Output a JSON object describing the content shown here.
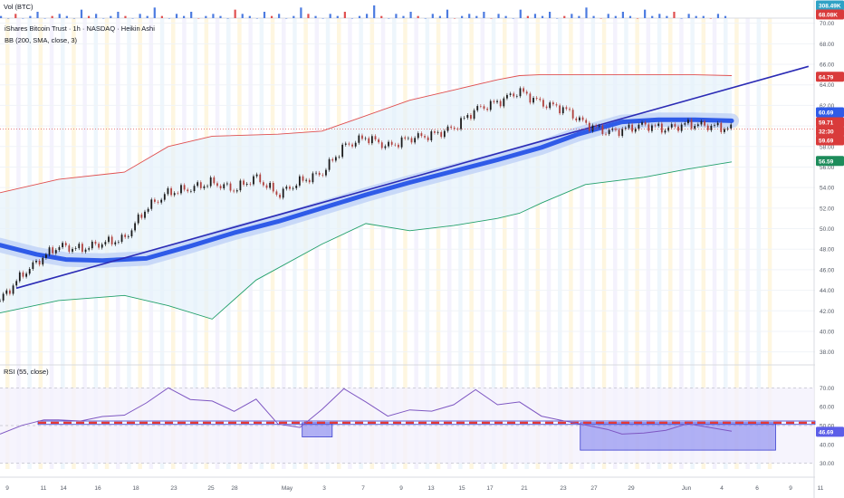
{
  "header": {
    "title": "iShares Bitcoin Trust · 1h · NASDAQ · Heikin Ashi",
    "bb_label": "BB (200, SMA, close, 3)",
    "vol_label": "Vol (BTC)",
    "rsi_label": "RSI (55, close)"
  },
  "colors": {
    "price_line": "#1a1a1a",
    "candle_up": "#1a1a1a",
    "candle_down": "#b0413e",
    "bb_upper": "#e05050",
    "bb_lower": "#22a06b",
    "bb_fill": "#e6f2fb",
    "basis": "#2f5be8",
    "trendline": "#2b2bb5",
    "rsi_line": "#7e57c2",
    "rsi_box": "#5c5ee8",
    "rsi_dash": "#e53935",
    "vol_up": "#4c7be0",
    "vol_down": "#e05050",
    "badge_green": "#1e8c5b",
    "badge_red": "#d93b3b",
    "badge_blue": "#2f5be8",
    "vol_badge_blue": "#2fa2c6"
  },
  "price_axis_labels": [
    "70.00",
    "68.00",
    "66.00",
    "64.00",
    "62.00",
    "60.00",
    "58.00",
    "56.00",
    "54.00",
    "52.00",
    "50.00",
    "48.00",
    "46.00",
    "44.00",
    "42.00",
    "40.00",
    "38.00"
  ],
  "rsi_axis_labels": [
    "70.00",
    "60.00",
    "50.00",
    "40.00",
    "30.00"
  ],
  "badges": {
    "vol1": "308.49K",
    "vol2": "68.08K",
    "bb_upper": "64.79",
    "basis": "60.69",
    "price": "59.71",
    "countdown": "32:30",
    "price2": "59.69",
    "bb_lower": "56.59",
    "rsi": "46.69"
  },
  "x_axis_labels": [
    "9",
    "11",
    "14",
    "16",
    "18",
    "23",
    "25",
    "28",
    "May",
    "3",
    "7",
    "9",
    "13",
    "15",
    "17",
    "21",
    "23",
    "27",
    "29",
    "Jun",
    "4",
    "6",
    "9",
    "11"
  ],
  "chart_data": {
    "type": "line",
    "price_ylim": [
      37,
      70.5
    ],
    "rsi_ylim": [
      27,
      73
    ],
    "price_series": {
      "name": "Price",
      "x": [
        0,
        3,
        6,
        8,
        11,
        14,
        17,
        20,
        23,
        26,
        29,
        32,
        35,
        38,
        41,
        44,
        47,
        50,
        53,
        56,
        59,
        62,
        65,
        68,
        71,
        74,
        77,
        80,
        83,
        85,
        88,
        91,
        94,
        97,
        100
      ],
      "values": [
        43.0,
        45.5,
        47.3,
        48.3,
        48.0,
        48.6,
        49.0,
        52.0,
        53.5,
        53.9,
        54.5,
        53.8,
        55.0,
        53.3,
        54.6,
        55.4,
        58.0,
        58.9,
        58.0,
        58.8,
        59.1,
        59.8,
        61.6,
        62.3,
        63.4,
        62.2,
        61.7,
        60.2,
        59.4,
        59.6,
        60.1,
        59.7,
        60.2,
        60.0,
        59.7
      ]
    },
    "bb_upper": {
      "name": "BB upper",
      "x": [
        0,
        8,
        17,
        23,
        29,
        38,
        44,
        50,
        56,
        62,
        68,
        71,
        74,
        80,
        88,
        94,
        100
      ],
      "values": [
        53.5,
        54.8,
        55.5,
        58.0,
        59.0,
        59.2,
        59.5,
        61.0,
        62.5,
        63.5,
        64.5,
        64.9,
        65.0,
        65.0,
        65.0,
        65.0,
        64.9
      ]
    },
    "bb_lower": {
      "name": "BB lower",
      "x": [
        0,
        8,
        17,
        23,
        29,
        35,
        44,
        50,
        56,
        62,
        68,
        71,
        74,
        80,
        88,
        94,
        100
      ],
      "values": [
        41.8,
        43.0,
        43.5,
        42.5,
        41.2,
        45.0,
        48.5,
        50.5,
        49.8,
        50.3,
        51.0,
        51.5,
        52.5,
        54.3,
        55.0,
        55.8,
        56.5
      ]
    },
    "basis": {
      "name": "Basis",
      "x": [
        0,
        5,
        9,
        14,
        20,
        26,
        32,
        38,
        44,
        50,
        56,
        62,
        68,
        74,
        79,
        85,
        90,
        95,
        100
      ],
      "values": [
        48.4,
        47.5,
        47.0,
        46.9,
        47.1,
        48.3,
        49.6,
        50.7,
        52.0,
        53.3,
        54.5,
        55.6,
        56.7,
        57.9,
        59.2,
        60.4,
        60.6,
        60.6,
        60.5
      ]
    },
    "trendline": {
      "x": [
        0,
        100,
        110.5
      ],
      "values": [
        44.2,
        60.2,
        65.8
      ]
    },
    "rsi_series": {
      "name": "RSI",
      "x": [
        0,
        3,
        6,
        8,
        11,
        14,
        17,
        20,
        23,
        26,
        29,
        32,
        35,
        38,
        41,
        44,
        47,
        50,
        53,
        56,
        59,
        62,
        65,
        68,
        71,
        74,
        77,
        80,
        83,
        85,
        88,
        91,
        94,
        97,
        100
      ],
      "values": [
        45.5,
        50.1,
        53.0,
        53.0,
        52.4,
        54.8,
        55.5,
        62.0,
        70.0,
        63.8,
        63.0,
        57.5,
        64.0,
        50.8,
        49.0,
        58.5,
        69.5,
        62.5,
        55.0,
        58.3,
        57.6,
        61.0,
        69.0,
        61.0,
        62.5,
        55.0,
        52.5,
        50.3,
        48.0,
        45.5,
        46.0,
        47.5,
        51.0,
        49.0,
        47.0
      ]
    },
    "rsi_level": 51.5,
    "rsi_boxes": [
      {
        "x0": 41.3,
        "x1": 45.4,
        "top": 51.5,
        "bottom": 44.0
      },
      {
        "x0": 79.3,
        "x1": 106.0,
        "top": 51.5,
        "bottom": 37.0
      }
    ],
    "volume": {
      "name": "Volume",
      "values": [
        1,
        0,
        2,
        0,
        1,
        3,
        0,
        1,
        2,
        1,
        0,
        4,
        1,
        2,
        0,
        1,
        3,
        1,
        0,
        2,
        1,
        5,
        1,
        0,
        2,
        1,
        3,
        0,
        1,
        2,
        1,
        0,
        4,
        2,
        1,
        0,
        3,
        1,
        2,
        0,
        1,
        5,
        2,
        1,
        0,
        2,
        1,
        3,
        0,
        1,
        2,
        6,
        1,
        0,
        2,
        1,
        3,
        1,
        0,
        2,
        1,
        4,
        0,
        1,
        2,
        1,
        3,
        0,
        2,
        1,
        0,
        4,
        1,
        2,
        1,
        3,
        0,
        1,
        2,
        1,
        5,
        1,
        0,
        2,
        1,
        3,
        1,
        0,
        4,
        1,
        2,
        1,
        3,
        0,
        2,
        1,
        1,
        0,
        2,
        1
      ]
    }
  }
}
